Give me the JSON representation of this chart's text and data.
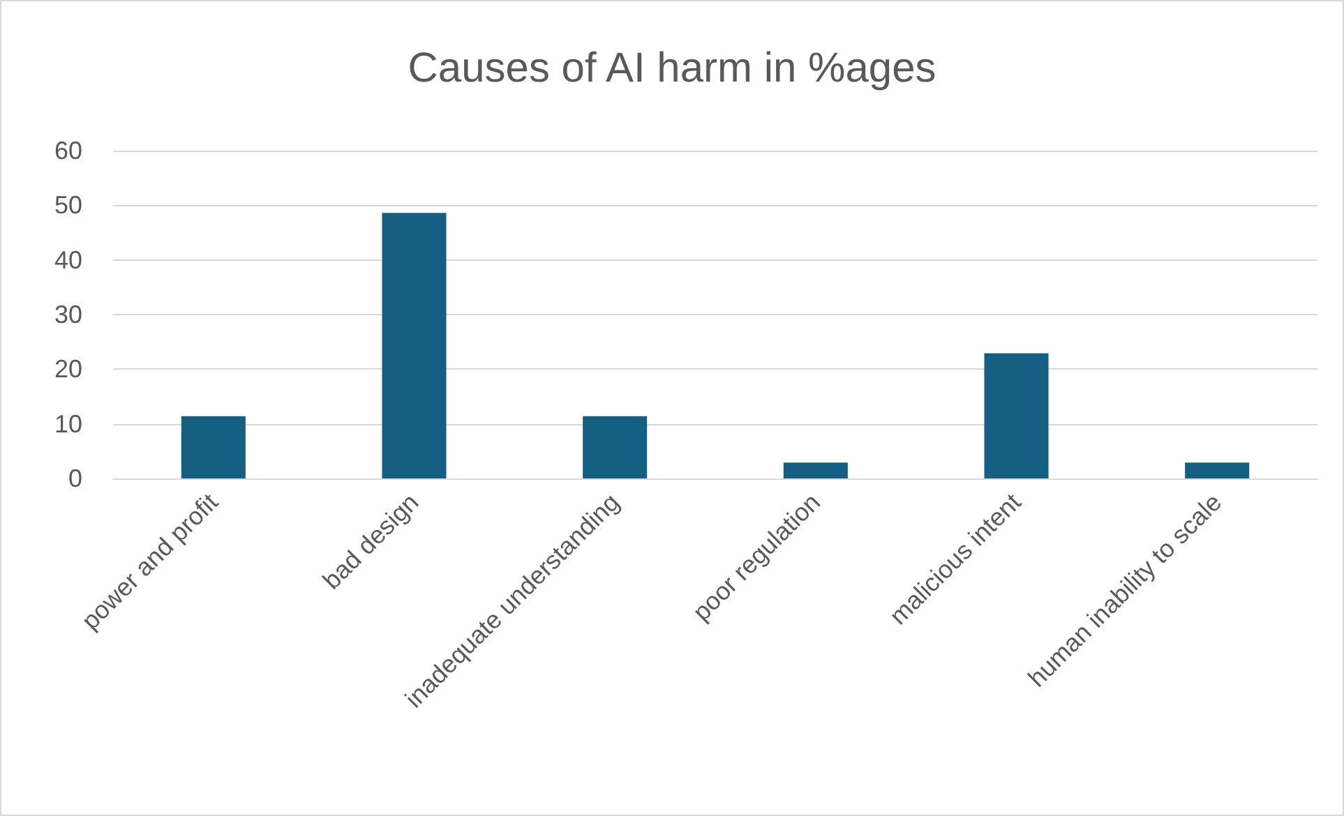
{
  "chart_data": {
    "type": "bar",
    "title": "Causes of AI harm in %ages",
    "categories": [
      "power and profit",
      "bad design",
      "inadequate understanding",
      "poor regulation",
      "malicious intent",
      "human inability to scale"
    ],
    "values": [
      11.4,
      48.6,
      11.4,
      2.9,
      22.9,
      2.9
    ],
    "color": "#156082",
    "ylim": [
      0,
      60
    ],
    "yticks": [
      0,
      10,
      20,
      30,
      40,
      50,
      60
    ],
    "grid": "y"
  }
}
